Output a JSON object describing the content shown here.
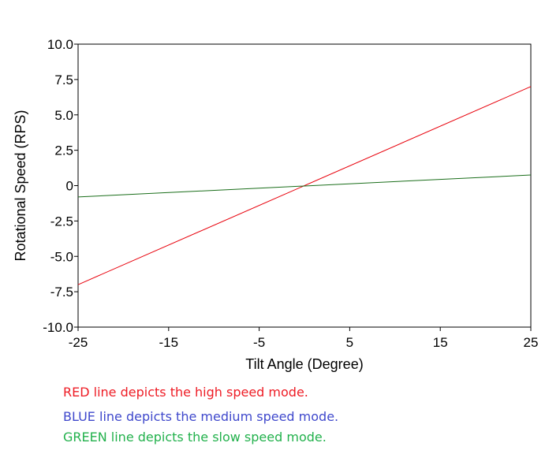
{
  "chart_data": {
    "type": "line",
    "xlabel": "Tilt Angle (Degree)",
    "ylabel": "Rotational Speed (RPS)",
    "xlim": [
      -25,
      25
    ],
    "ylim": [
      -10,
      10
    ],
    "xticks": [
      -25,
      -15,
      -5,
      5,
      15,
      25
    ],
    "xtick_labels": [
      "-25",
      "-15",
      "-5",
      "5",
      "15",
      "25"
    ],
    "yticks": [
      10,
      7.5,
      5,
      2.5,
      0,
      -2.5,
      -5,
      -7.5,
      -10
    ],
    "ytick_labels": [
      "10.0",
      "7.5",
      "5.0",
      "2.5",
      "0",
      "-2.5",
      "-5.0",
      "-7.5",
      "-10.0"
    ],
    "grid": false,
    "series": [
      {
        "color": "#e8000b",
        "x": [
          -25,
          25
        ],
        "y": [
          -7.0,
          7.0
        ]
      },
      {
        "color": "#1a6e1a",
        "x": [
          -25,
          25
        ],
        "y": [
          -0.8,
          0.75
        ]
      }
    ]
  },
  "captions": [
    {
      "text": "RED line depicts the high speed mode.",
      "color": "#ee1c25"
    },
    {
      "text": "BLUE line depicts the medium speed mode.",
      "color": "#3f48cc"
    },
    {
      "text": "GREEN line depicts the slow speed mode.",
      "color": "#22b14c"
    }
  ]
}
